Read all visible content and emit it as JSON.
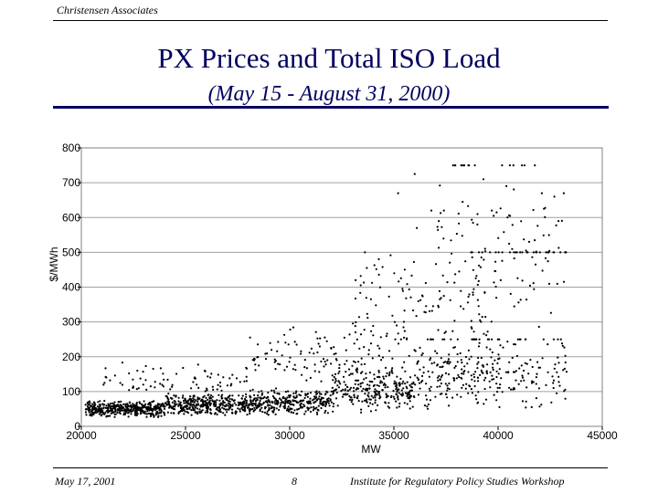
{
  "header": {
    "organization": "Christensen Associates"
  },
  "slide": {
    "title": "PX Prices and Total ISO Load",
    "subtitle": "(May 15 - August 31, 2000)"
  },
  "footer": {
    "date": "May 17, 2001",
    "page_number": "8",
    "event": "Institute for Regulatory Policy Studies Workshop"
  },
  "chart_data": {
    "type": "scatter",
    "xlabel": "MW",
    "ylabel": "$/MWh",
    "xlim": [
      20000,
      45000
    ],
    "ylim": [
      0,
      800
    ],
    "xticks": [
      20000,
      25000,
      30000,
      35000,
      40000,
      45000
    ],
    "yticks": [
      0,
      100,
      200,
      300,
      400,
      500,
      600,
      700,
      800
    ],
    "grid": "horizontal",
    "marker_color": "#000000",
    "clusters": [
      {
        "x_range": [
          20200,
          24000
        ],
        "y_range": [
          25,
          75
        ],
        "count": 420
      },
      {
        "x_range": [
          24000,
          28000
        ],
        "y_range": [
          30,
          95
        ],
        "count": 380
      },
      {
        "x_range": [
          28000,
          32000
        ],
        "y_range": [
          30,
          110
        ],
        "count": 330
      },
      {
        "x_range": [
          32000,
          36000
        ],
        "y_range": [
          35,
          170
        ],
        "count": 260
      },
      {
        "x_range": [
          36000,
          40000
        ],
        "y_range": [
          40,
          240
        ],
        "count": 170
      },
      {
        "x_range": [
          40000,
          43300
        ],
        "y_range": [
          40,
          260
        ],
        "count": 90
      },
      {
        "x_range": [
          21000,
          28000
        ],
        "y_range": [
          80,
          190
        ],
        "count": 80
      },
      {
        "x_range": [
          28000,
          35000
        ],
        "y_range": [
          100,
          290
        ],
        "count": 120
      },
      {
        "x_range": [
          33000,
          40000
        ],
        "y_range": [
          150,
          520
        ],
        "count": 130
      },
      {
        "x_range": [
          37000,
          43300
        ],
        "y_range": [
          250,
          740
        ],
        "count": 90
      }
    ],
    "price_caps": [
      {
        "y": 750,
        "x_range": [
          37500,
          42000
        ],
        "count": 16
      },
      {
        "y": 500,
        "x_range": [
          38500,
          43300
        ],
        "count": 30
      },
      {
        "y": 250,
        "x_range": [
          35000,
          43300
        ],
        "count": 34
      }
    ],
    "outliers": [
      {
        "x": 33500,
        "y": 125
      },
      {
        "x": 33700,
        "y": 455
      },
      {
        "x": 35200,
        "y": 670
      },
      {
        "x": 36000,
        "y": 725
      },
      {
        "x": 36100,
        "y": 570
      },
      {
        "x": 36800,
        "y": 620
      },
      {
        "x": 37400,
        "y": 620
      },
      {
        "x": 38300,
        "y": 645
      },
      {
        "x": 38800,
        "y": 585
      },
      {
        "x": 39300,
        "y": 710
      },
      {
        "x": 39700,
        "y": 620
      },
      {
        "x": 40400,
        "y": 690
      },
      {
        "x": 42100,
        "y": 670
      },
      {
        "x": 42200,
        "y": 625
      },
      {
        "x": 42900,
        "y": 590
      },
      {
        "x": 42700,
        "y": 660
      },
      {
        "x": 41800,
        "y": 465
      }
    ]
  }
}
